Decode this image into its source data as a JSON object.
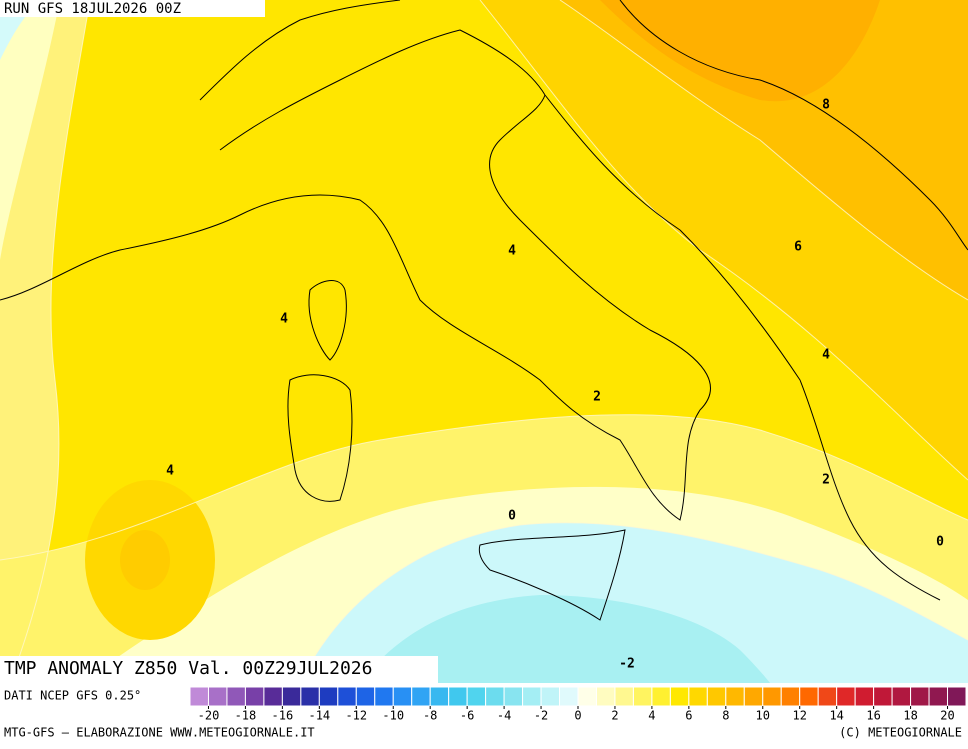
{
  "header": {
    "run": "RUN GFS 18JUL2026 00Z"
  },
  "map": {
    "title": "TMP ANOMALY Z850 Val. 00Z29JUL2026",
    "source": "DATI NCEP GFS 0.25°",
    "contour_labels": [
      8,
      6,
      4,
      4,
      4,
      4,
      2,
      2,
      0,
      0,
      -2
    ]
  },
  "colorbar": {
    "ticks": [
      -20,
      -18,
      -16,
      -14,
      -12,
      -10,
      -8,
      -6,
      -4,
      -2,
      0,
      2,
      4,
      6,
      8,
      10,
      12,
      14,
      16,
      18,
      20
    ],
    "colors": [
      "#c08ad8",
      "#a870c8",
      "#9058b8",
      "#7840a8",
      "#582c98",
      "#3a2a9a",
      "#2a30a8",
      "#1e3cc0",
      "#1e50d8",
      "#1e64e6",
      "#2078f0",
      "#2890f4",
      "#30a4f4",
      "#38b8f0",
      "#40c8ee",
      "#50d4ee",
      "#6cdcee",
      "#88e4f0",
      "#a4eef4",
      "#c0f4f8",
      "#e0fafc",
      "#ffffe8",
      "#fffcc0",
      "#fff890",
      "#fff460",
      "#fff030",
      "#ffe800",
      "#ffd800",
      "#ffc800",
      "#ffb800",
      "#ffa800",
      "#ff9800",
      "#ff8000",
      "#ff6800",
      "#f04818",
      "#e02828",
      "#d01c30",
      "#c01838",
      "#b01840",
      "#a01848",
      "#901850",
      "#801858"
    ]
  },
  "footer": {
    "left": "MTG-GFS — ELABORAZIONE WWW.METEOGIORNALE.IT",
    "right": "(C) METEOGIORNALE"
  }
}
